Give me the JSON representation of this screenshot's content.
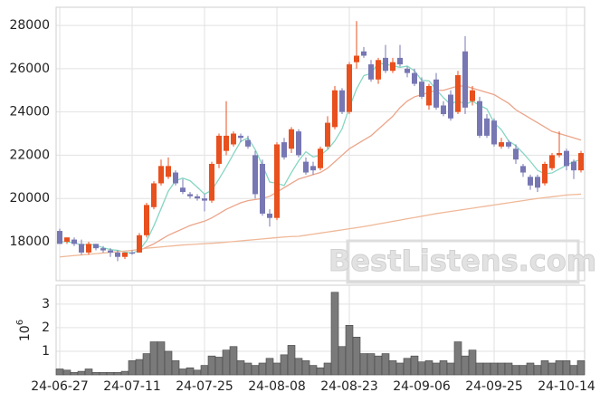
{
  "chart_data": [
    {
      "type": "candlestick",
      "categories": [
        "24-06-27",
        null,
        null,
        null,
        null,
        null,
        null,
        null,
        null,
        null,
        "24-07-11",
        null,
        null,
        null,
        null,
        null,
        null,
        null,
        null,
        null,
        "24-07-25",
        null,
        null,
        null,
        null,
        null,
        null,
        null,
        null,
        null,
        "24-08-08",
        null,
        null,
        null,
        null,
        null,
        null,
        null,
        null,
        null,
        "24-08-23",
        null,
        null,
        null,
        null,
        null,
        null,
        null,
        null,
        null,
        "24-09-06",
        null,
        null,
        null,
        null,
        null,
        null,
        null,
        null,
        null,
        "24-09-25",
        null,
        null,
        null,
        null,
        null,
        null,
        null,
        null,
        null,
        "24-10-14",
        null,
        null
      ],
      "open": [
        18500,
        18000,
        18100,
        17900,
        17500,
        17900,
        17700,
        17600,
        17500,
        17300,
        17500,
        17500,
        18300,
        19600,
        20700,
        21000,
        21200,
        20500,
        20200,
        20100,
        20000,
        19900,
        21600,
        22200,
        22500,
        22900,
        22700,
        22000,
        21600,
        19300,
        19100,
        22600,
        22300,
        23100,
        21700,
        21500,
        21400,
        22400,
        23300,
        25000,
        24000,
        26300,
        26800,
        26200,
        25500,
        26500,
        25900,
        26500,
        26000,
        25800,
        25400,
        24300,
        25500,
        24300,
        24800,
        24000,
        26800,
        24500,
        24500,
        23700,
        23600,
        22400,
        22600,
        22300,
        21500,
        21000,
        21000,
        20700,
        21400,
        22000,
        22200,
        21700,
        21300
      ],
      "high": [
        18600,
        18200,
        18200,
        18100,
        18000,
        17900,
        17800,
        17700,
        17600,
        17500,
        17600,
        18400,
        19800,
        20800,
        21800,
        21900,
        21300,
        20900,
        20300,
        20200,
        20200,
        21700,
        23000,
        24500,
        23100,
        23000,
        22900,
        22200,
        21800,
        19500,
        22600,
        22800,
        23300,
        23200,
        21900,
        21700,
        22400,
        23800,
        25200,
        25100,
        26300,
        28200,
        27000,
        26400,
        26500,
        27100,
        26500,
        27100,
        26100,
        26000,
        25600,
        25300,
        25800,
        24500,
        25000,
        25900,
        27500,
        25200,
        24700,
        23900,
        23700,
        22800,
        22700,
        22500,
        21600,
        21100,
        21100,
        21700,
        22100,
        23100,
        22300,
        21800,
        22200
      ],
      "low": [
        17900,
        17900,
        17800,
        17400,
        17400,
        17600,
        17500,
        17300,
        17100,
        17200,
        17400,
        17500,
        18200,
        19500,
        20600,
        20900,
        20600,
        20200,
        20000,
        19900,
        19400,
        19800,
        21400,
        22000,
        22400,
        22600,
        22300,
        20000,
        19200,
        18700,
        19000,
        21800,
        22100,
        21900,
        21100,
        21100,
        21300,
        22300,
        23200,
        23900,
        23900,
        26000,
        26500,
        25400,
        25300,
        25800,
        25800,
        26100,
        25600,
        25200,
        24600,
        24100,
        24100,
        23800,
        23600,
        23900,
        23900,
        24300,
        22800,
        22800,
        22400,
        22300,
        22300,
        21600,
        21000,
        20400,
        20300,
        20600,
        21300,
        21900,
        21300,
        20900,
        21200
      ],
      "close": [
        17900,
        18200,
        17900,
        17500,
        17900,
        17700,
        17600,
        17500,
        17300,
        17500,
        17450,
        18300,
        19700,
        20700,
        21500,
        21500,
        20700,
        20300,
        20100,
        20000,
        19900,
        21600,
        22900,
        22900,
        23000,
        22800,
        22400,
        20200,
        19300,
        19100,
        22500,
        21900,
        23200,
        22000,
        21200,
        21300,
        22300,
        23500,
        25000,
        24000,
        26200,
        26600,
        26600,
        25500,
        26400,
        25900,
        26300,
        26200,
        25800,
        25300,
        24700,
        25200,
        24200,
        23900,
        23700,
        25700,
        24200,
        25000,
        22900,
        22900,
        22500,
        22600,
        22400,
        21800,
        21200,
        20600,
        20500,
        21600,
        22000,
        22100,
        21500,
        21300,
        22100
      ],
      "up_color": "#e8501e",
      "down_color": "#7777b4",
      "series": [
        {
          "color": "#86d6c2",
          "values": [
            18000,
            18000,
            17950,
            17850,
            17880,
            17840,
            17720,
            17640,
            17600,
            17520,
            17470,
            17610,
            18050,
            18730,
            19530,
            20340,
            20820,
            20940,
            20820,
            20520,
            20200,
            20380,
            20900,
            21460,
            22060,
            22640,
            22800,
            22260,
            21540,
            20760,
            20700,
            20600,
            21200,
            21740,
            22160,
            21920,
            22000,
            22260,
            22660,
            23220,
            24200,
            25060,
            25680,
            25780,
            26260,
            26200,
            26140,
            26060,
            26120,
            25900,
            25460,
            25440,
            25040,
            24660,
            24340,
            24540,
            24340,
            24500,
            24300,
            24140,
            23500,
            23180,
            22660,
            22440,
            22100,
            21720,
            21300,
            21140,
            21180,
            21360,
            21540,
            21700,
            21800
          ]
        },
        {
          "color": "#eba58a",
          "values": [
            null,
            null,
            null,
            null,
            null,
            null,
            null,
            null,
            null,
            null,
            null,
            17600,
            17750,
            17900,
            18100,
            18300,
            18450,
            18600,
            18750,
            18850,
            18950,
            19100,
            19300,
            19500,
            19650,
            19800,
            19900,
            19950,
            20000,
            20100,
            20300,
            20500,
            20700,
            20900,
            21000,
            21100,
            21200,
            21400,
            21700,
            22000,
            22300,
            22500,
            22700,
            22900,
            23200,
            23500,
            23800,
            24200,
            24500,
            24700,
            24800,
            24900,
            25000,
            25000,
            25100,
            25200,
            25200,
            25100,
            25000,
            24900,
            24800,
            24600,
            24400,
            24100,
            23900,
            23700,
            23500,
            23300,
            23100,
            23000,
            22900,
            22800,
            22700
          ]
        },
        {
          "color": "#efb898",
          "values": [
            17300,
            17330,
            17360,
            17390,
            17420,
            17450,
            17480,
            17510,
            17540,
            17570,
            17600,
            17650,
            17700,
            17730,
            17760,
            17790,
            17820,
            17850,
            17870,
            17890,
            17910,
            17930,
            17950,
            17980,
            18010,
            18040,
            18070,
            18100,
            18130,
            18160,
            18190,
            18220,
            18240,
            18250,
            18300,
            18350,
            18400,
            18450,
            18500,
            18550,
            18600,
            18650,
            18700,
            18760,
            18820,
            18880,
            18940,
            19000,
            19060,
            19120,
            19180,
            19240,
            19300,
            19350,
            19400,
            19450,
            19500,
            19550,
            19600,
            19650,
            19700,
            19750,
            19800,
            19850,
            19900,
            19950,
            20000,
            20040,
            20080,
            20120,
            20160,
            20180,
            20200
          ]
        }
      ],
      "ylim": [
        16200,
        28840
      ],
      "yticks": [
        18000,
        20000,
        22000,
        24000,
        26000,
        28000
      ],
      "grid": true,
      "watermark": "BestListens.com"
    },
    {
      "type": "bar",
      "values": [
        0.25,
        0.2,
        0.1,
        0.15,
        0.25,
        0.1,
        0.1,
        0.1,
        0.1,
        0.15,
        0.6,
        0.65,
        0.9,
        1.4,
        1.4,
        1.0,
        0.6,
        0.25,
        0.3,
        0.2,
        0.4,
        0.8,
        0.75,
        1.05,
        1.2,
        0.6,
        0.5,
        0.4,
        0.5,
        0.7,
        0.5,
        0.85,
        1.25,
        0.7,
        0.6,
        0.4,
        0.3,
        0.5,
        3.5,
        1.2,
        2.1,
        1.6,
        0.9,
        0.9,
        0.8,
        0.9,
        0.6,
        0.5,
        0.7,
        0.8,
        0.55,
        0.6,
        0.5,
        0.6,
        0.5,
        1.4,
        0.8,
        1.05,
        0.5,
        0.5,
        0.5,
        0.5,
        0.5,
        0.4,
        0.4,
        0.5,
        0.4,
        0.6,
        0.5,
        0.6,
        0.6,
        0.4,
        0.6
      ],
      "color": "#7a7a7a",
      "ylabel": "10",
      "ylabel_exponent": "6",
      "ylim": [
        0,
        3.8
      ],
      "yticks": [
        1,
        2,
        3
      ],
      "grid": true
    }
  ]
}
